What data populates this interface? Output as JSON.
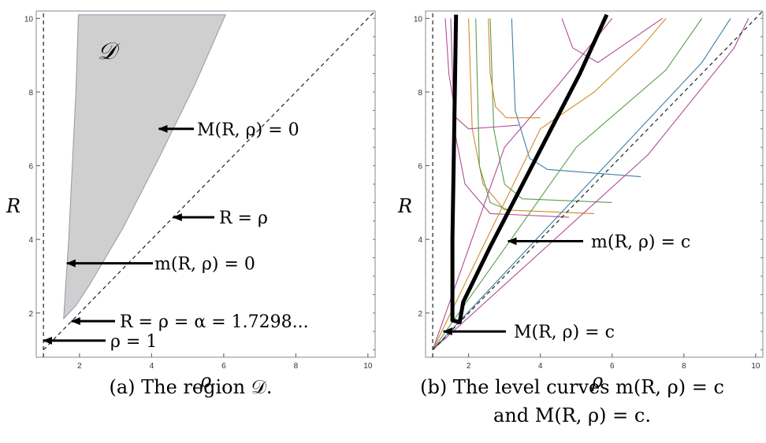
{
  "chart_data": [
    {
      "type": "area",
      "title": "",
      "xlabel": "ρ",
      "ylabel": "R",
      "xlim": [
        0.8,
        10.2
      ],
      "ylim": [
        0.8,
        10.2
      ],
      "ticks": [
        "2",
        "4",
        "6",
        "8",
        "10"
      ],
      "region_label": "𝒟",
      "region_color": "#cfcfcf",
      "region_upper_boundary": [
        [
          1.56,
          1.85
        ],
        [
          1.6,
          2.5
        ],
        [
          1.7,
          4
        ],
        [
          1.8,
          6
        ],
        [
          1.9,
          8
        ],
        [
          1.97,
          10.1
        ]
      ],
      "region_lower_boundary": [
        [
          1.56,
          1.85
        ],
        [
          1.9,
          2.2
        ],
        [
          2.3,
          2.8
        ],
        [
          3.2,
          4.3
        ],
        [
          4.2,
          6.2
        ],
        [
          5.2,
          8.2
        ],
        [
          6.05,
          10.1
        ]
      ],
      "annotations": [
        {
          "label": "M(R, ρ) = 0",
          "point": [
            4.2,
            7.0
          ]
        },
        {
          "label": "R = ρ",
          "point": [
            4.6,
            4.6
          ]
        },
        {
          "label": "m(R, ρ) = 0",
          "point": [
            1.65,
            3.35
          ]
        },
        {
          "label": "R = ρ = α = 1.7298...",
          "point": [
            1.78,
            1.78
          ]
        },
        {
          "label": "ρ = 1",
          "point": [
            1.0,
            1.25
          ]
        }
      ],
      "caption": "(a) The region 𝒟."
    },
    {
      "type": "line",
      "title": "",
      "xlabel": "ρ",
      "ylabel": "R",
      "xlim": [
        0.8,
        10.2
      ],
      "ylim": [
        0.8,
        10.2
      ],
      "ticks": [
        "2",
        "4",
        "6",
        "8",
        "10"
      ],
      "series_colors": [
        "#b04d96",
        "#d08b2b",
        "#5a9c4c",
        "#3e7eaa"
      ],
      "level_curves_m": [
        [
          [
            1.5,
            10
          ],
          [
            1.6,
            7
          ],
          [
            1.9,
            5.5
          ],
          [
            2.6,
            4.7
          ],
          [
            4.8,
            4.6
          ]
        ],
        [
          [
            2.0,
            10
          ],
          [
            2.1,
            7
          ],
          [
            2.4,
            5.5
          ],
          [
            3.0,
            4.8
          ],
          [
            5.5,
            4.7
          ]
        ],
        [
          [
            2.6,
            10
          ],
          [
            2.7,
            7
          ],
          [
            3.0,
            5.5
          ],
          [
            3.5,
            5.1
          ],
          [
            6.0,
            5.0
          ]
        ],
        [
          [
            3.2,
            10
          ],
          [
            3.3,
            7.5
          ],
          [
            3.7,
            6.2
          ],
          [
            4.2,
            5.9
          ],
          [
            6.8,
            5.7
          ]
        ],
        [
          [
            4.6,
            10
          ],
          [
            4.9,
            9.2
          ],
          [
            5.6,
            8.8
          ],
          [
            7.4,
            10
          ]
        ]
      ],
      "level_curves_M": [
        [
          [
            1.0,
            1.0
          ],
          [
            3.0,
            6.5
          ],
          [
            4.5,
            8.2
          ],
          [
            6.0,
            10
          ]
        ],
        [
          [
            1.0,
            1.0
          ],
          [
            4.0,
            7.0
          ],
          [
            5.5,
            8.0
          ],
          [
            6.8,
            9.2
          ],
          [
            7.5,
            10
          ]
        ],
        [
          [
            1.0,
            1.0
          ],
          [
            5.0,
            6.5
          ],
          [
            7.5,
            8.6
          ],
          [
            8.5,
            10
          ]
        ],
        [
          [
            1.0,
            1.0
          ],
          [
            6.0,
            6.2
          ],
          [
            8.5,
            8.8
          ],
          [
            9.3,
            10
          ]
        ],
        [
          [
            1.0,
            1.0
          ],
          [
            7.0,
            6.3
          ],
          [
            9.4,
            9.2
          ],
          [
            9.8,
            10
          ]
        ]
      ],
      "level_curves_transition": [
        [
          [
            1.35,
            10
          ],
          [
            1.45,
            8.5
          ],
          [
            1.65,
            7.3
          ],
          [
            2.0,
            7.0
          ],
          [
            3.4,
            7.1
          ]
        ],
        [
          [
            2.55,
            10
          ],
          [
            2.6,
            8.5
          ],
          [
            2.75,
            7.6
          ],
          [
            3.05,
            7.3
          ],
          [
            4.0,
            7.3
          ]
        ],
        [
          [
            2.2,
            10
          ],
          [
            2.25,
            8.0
          ],
          [
            2.3,
            6.0
          ],
          [
            2.6,
            5.0
          ],
          [
            3.1,
            4.8
          ]
        ]
      ],
      "thick_curve": [
        [
          1.65,
          10.1
        ],
        [
          1.6,
          7
        ],
        [
          1.55,
          4
        ],
        [
          1.55,
          1.8
        ],
        [
          1.75,
          1.75
        ],
        [
          1.85,
          2.3
        ],
        [
          2.6,
          3.8
        ],
        [
          3.4,
          5.3
        ],
        [
          4.3,
          7.0
        ],
        [
          5.1,
          8.5
        ],
        [
          5.85,
          10.1
        ]
      ],
      "annotations": [
        {
          "label": "m(R, ρ) = c",
          "point": [
            3.1,
            3.95
          ]
        },
        {
          "label": "M(R, ρ) = c",
          "point": [
            1.3,
            1.5
          ]
        }
      ],
      "caption_line1": "(b) The level curves m(R, ρ) = c",
      "caption_line2": "and M(R, ρ) = c."
    }
  ]
}
